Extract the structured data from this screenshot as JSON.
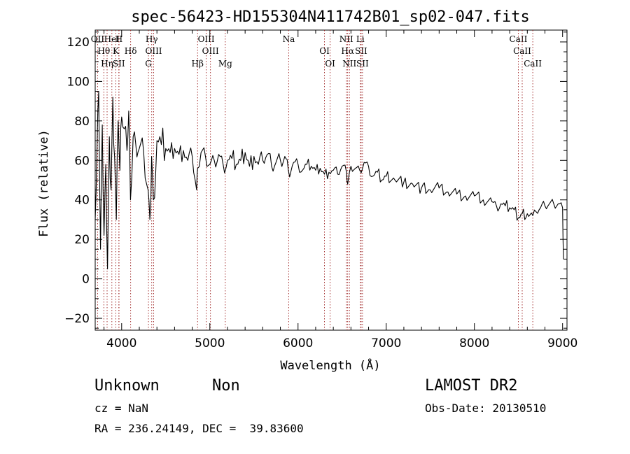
{
  "chart_data": {
    "type": "line",
    "title": "spec-56423-HD155304N411742B01_sp02-047.fits",
    "xlabel": "Wavelength (Å)",
    "ylabel": "Flux (relative)",
    "xlim": [
      3700,
      9050
    ],
    "ylim": [
      -26,
      126
    ],
    "xticks": [
      4000,
      5000,
      6000,
      7000,
      8000,
      9000
    ],
    "yticks": [
      -20,
      0,
      20,
      40,
      60,
      80,
      100,
      120
    ],
    "grid": false,
    "series": [
      {
        "color": "#000000",
        "x": [
          3700,
          3720,
          3740,
          3760,
          3780,
          3800,
          3820,
          3840,
          3860,
          3880,
          3900,
          3920,
          3940,
          3960,
          3980,
          4000,
          4030,
          4060,
          4080,
          4100,
          4130,
          4160,
          4200,
          4250,
          4300,
          4320,
          4340,
          4360,
          4400,
          4450,
          4500,
          4550,
          4600,
          4650,
          4700,
          4750,
          4800,
          4850,
          4861,
          4900,
          4950,
          5000,
          5050,
          5100,
          5150,
          5200,
          5250,
          5300,
          5350,
          5400,
          5450,
          5500,
          5550,
          5600,
          5650,
          5700,
          5750,
          5800,
          5850,
          5890,
          5950,
          6000,
          6050,
          6100,
          6150,
          6200,
          6250,
          6300,
          6350,
          6400,
          6450,
          6500,
          6550,
          6563,
          6600,
          6650,
          6700,
          6750,
          6800,
          6850,
          6900,
          6950,
          7000,
          7100,
          7200,
          7300,
          7400,
          7500,
          7600,
          7700,
          7800,
          7900,
          8000,
          8100,
          8200,
          8250,
          8300,
          8350,
          8400,
          8450,
          8500,
          8542,
          8600,
          8662,
          8700,
          8750,
          8800,
          8850,
          8900,
          8950,
          9000,
          9010
        ],
        "y": [
          30,
          65,
          95,
          15,
          78,
          22,
          58,
          5,
          72,
          45,
          92,
          62,
          30,
          80,
          55,
          82,
          76,
          65,
          85,
          40,
          72,
          68,
          66,
          64,
          45,
          30,
          62,
          40,
          70,
          68,
          66,
          64,
          66,
          63,
          65,
          60,
          62,
          45,
          56,
          64,
          62,
          58,
          60,
          63,
          58,
          60,
          61,
          58,
          60,
          64,
          57,
          62,
          58,
          60,
          63,
          57,
          59,
          60,
          62,
          55,
          59,
          58,
          55,
          58,
          57,
          55,
          56,
          53,
          54,
          55,
          53,
          57,
          54,
          48,
          57,
          56,
          55,
          59,
          57,
          52,
          54,
          50,
          52,
          50,
          49,
          48,
          46,
          45,
          46,
          44,
          43,
          42,
          42,
          40,
          39,
          37,
          38,
          37,
          36,
          35,
          31,
          33,
          33,
          32,
          34,
          36,
          37,
          38,
          38,
          38,
          36,
          10
        ]
      }
    ],
    "lines": [
      {
        "name": "OII",
        "wavelength": 3727
      },
      {
        "name": "Hθ",
        "wavelength": 3798
      },
      {
        "name": "Hη",
        "wavelength": 3835
      },
      {
        "name": "HeI",
        "wavelength": 3889
      },
      {
        "name": "K",
        "wavelength": 3934
      },
      {
        "name": "SII",
        "wavelength": 3968
      },
      {
        "name": "H",
        "wavelength": 3970
      },
      {
        "name": "Hδ",
        "wavelength": 4102
      },
      {
        "name": "G",
        "wavelength": 4304
      },
      {
        "name": "Hγ",
        "wavelength": 4341
      },
      {
        "name": "OIII",
        "wavelength": 4363
      },
      {
        "name": "Hβ",
        "wavelength": 4861
      },
      {
        "name": "OIII",
        "wavelength": 4959
      },
      {
        "name": "OIII",
        "wavelength": 5007
      },
      {
        "name": "Mg",
        "wavelength": 5175
      },
      {
        "name": "Na",
        "wavelength": 5894
      },
      {
        "name": "OI",
        "wavelength": 6300
      },
      {
        "name": "OI",
        "wavelength": 6364
      },
      {
        "name": "NII",
        "wavelength": 6548
      },
      {
        "name": "Hα",
        "wavelength": 6563
      },
      {
        "name": "NII",
        "wavelength": 6583
      },
      {
        "name": "Li",
        "wavelength": 6707
      },
      {
        "name": "SII",
        "wavelength": 6716
      },
      {
        "name": "SII",
        "wavelength": 6731
      },
      {
        "name": "CaII",
        "wavelength": 8498
      },
      {
        "name": "CaII",
        "wavelength": 8542
      },
      {
        "name": "CaII",
        "wavelength": 8662
      }
    ]
  },
  "info": {
    "class_label": "Unknown",
    "subclass_label": "Non",
    "survey": "LAMOST DR2",
    "cz": "cz = NaN",
    "obs_date": "Obs-Date: 20130510",
    "coords": "RA = 236.24149, DEC =  39.83600"
  }
}
